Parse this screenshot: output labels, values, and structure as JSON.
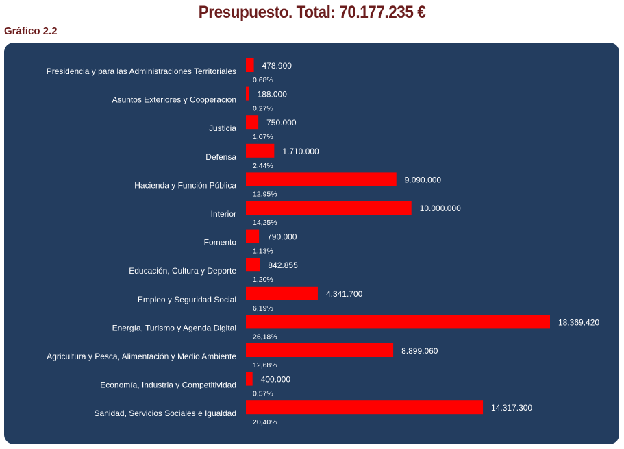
{
  "header": {
    "title": "Presupuesto. Total: 70.177.235 €",
    "subtitle": "Gráfico 2.2"
  },
  "colors": {
    "panel": "#233d5f",
    "bar": "#ff0000",
    "title": "#6b1d1d",
    "text": "#ffffff"
  },
  "chart_data": {
    "type": "bar",
    "orientation": "horizontal",
    "title": "Presupuesto. Total: 70.177.235 €",
    "xlabel": "",
    "ylabel": "",
    "grid": false,
    "xlim": [
      0,
      18369420
    ],
    "categories": [
      "Presidencia y para las Administraciones Territoriales",
      "Asuntos Exteriores y Cooperación",
      "Justicia",
      "Defensa",
      "Hacienda y Función Pública",
      "Interior",
      "Fomento",
      "Educación, Cultura y Deporte",
      "Empleo y Seguridad Social",
      "Energía, Turismo y Agenda Digital",
      "Agricultura y Pesca, Alimentación y Medio Ambiente",
      "Economía, Industria y Competitividad",
      "Sanidad, Servicios Sociales e Igualdad"
    ],
    "values": [
      478900,
      188000,
      750000,
      1710000,
      9090000,
      10000000,
      790000,
      842855,
      4341700,
      18369420,
      8899060,
      400000,
      14317300
    ],
    "value_labels": [
      "478.900",
      "188.000",
      "750.000",
      "1.710.000",
      "9.090.000",
      "10.000.000",
      "790.000",
      "842.855",
      "4.341.700",
      "18.369.420",
      "8.899.060",
      "400.000",
      "14.317.300"
    ],
    "percent_labels": [
      "0,68%",
      "0,27%",
      "1,07%",
      "2,44%",
      "12,95%",
      "14,25%",
      "1,13%",
      "1,20%",
      "6,19%",
      "26,18%",
      "12,68%",
      "0,57%",
      "20,40%"
    ]
  }
}
